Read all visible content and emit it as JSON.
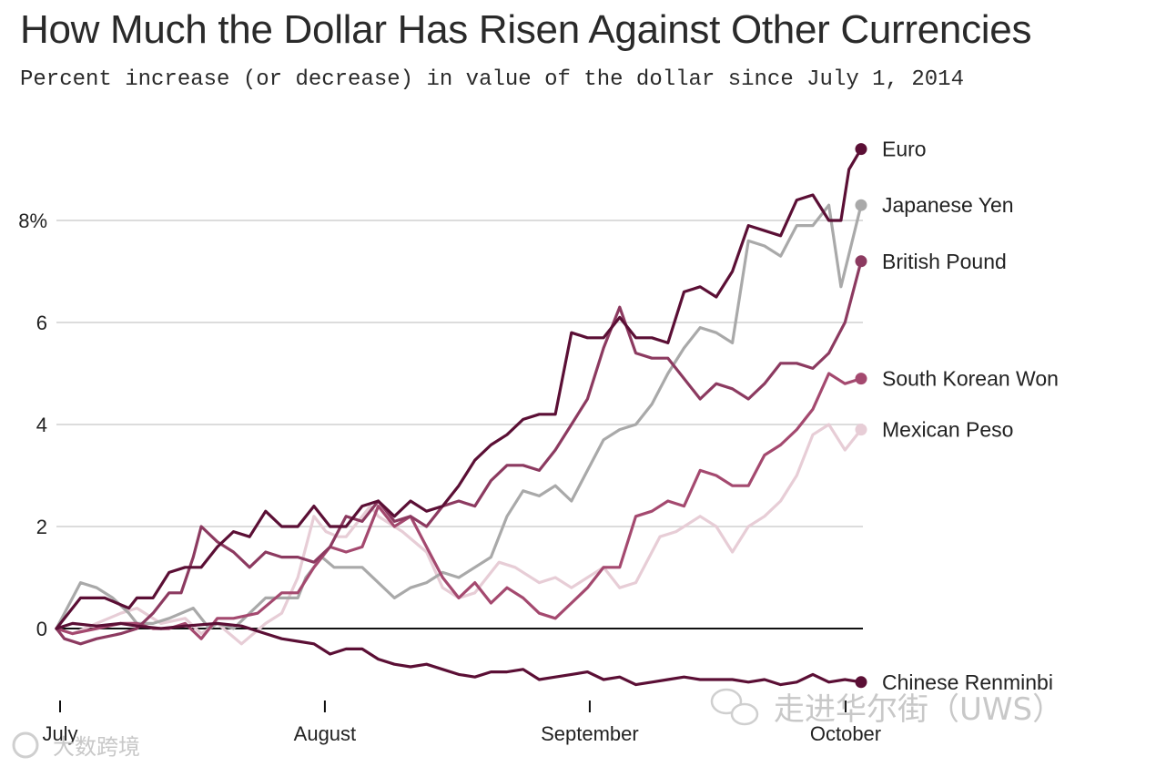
{
  "title": "How Much the Dollar Has Risen Against Other Currencies",
  "subtitle": "Percent increase (or decrease) in value of the dollar since July 1, 2014",
  "watermarks": {
    "left": "大数跨境",
    "right": "走进华尔街（UWS）"
  },
  "chart_data": {
    "type": "line",
    "ylim": [
      -1.3,
      10
    ],
    "xlim": [
      0,
      1
    ],
    "y_ticks": [
      {
        "value": 0,
        "label": "0"
      },
      {
        "value": 2,
        "label": "2"
      },
      {
        "value": 4,
        "label": "4"
      },
      {
        "value": 6,
        "label": "6"
      },
      {
        "value": 8,
        "label": "8%"
      }
    ],
    "x_ticks": [
      {
        "value": 0.0,
        "label": "July"
      },
      {
        "value": 0.3348,
        "label": "August"
      },
      {
        "value": 0.6697,
        "label": "September"
      },
      {
        "value": 0.9932,
        "label": "October"
      }
    ],
    "series": [
      {
        "name": "Mexican Peso",
        "label": "Mexican Peso",
        "color": "#e7cdd6",
        "end_label_value": 3.9,
        "x": [
          0,
          0.02,
          0.05,
          0.08,
          0.1,
          0.13,
          0.16,
          0.18,
          0.2,
          0.23,
          0.26,
          0.28,
          0.3,
          0.32,
          0.335,
          0.35,
          0.36,
          0.39,
          0.4,
          0.43,
          0.46,
          0.48,
          0.5,
          0.52,
          0.55,
          0.57,
          0.6,
          0.62,
          0.64,
          0.66,
          0.68,
          0.7,
          0.72,
          0.75,
          0.77,
          0.8,
          0.82,
          0.84,
          0.86,
          0.88,
          0.9,
          0.92,
          0.94,
          0.96,
          0.98,
          1.0
        ],
        "y": [
          0,
          -0.1,
          0.1,
          0.3,
          0.4,
          0.1,
          0.2,
          -0.1,
          0.1,
          -0.3,
          0.1,
          0.3,
          1.0,
          2.2,
          1.9,
          1.8,
          1.8,
          2.4,
          2.2,
          1.9,
          1.5,
          0.8,
          0.6,
          0.7,
          1.3,
          1.2,
          0.9,
          1.0,
          0.8,
          1.0,
          1.2,
          0.8,
          0.9,
          1.8,
          1.9,
          2.2,
          2.0,
          1.5,
          2.0,
          2.2,
          2.5,
          3.0,
          3.8,
          4.0,
          3.5,
          3.9
        ]
      },
      {
        "name": "Japanese Yen",
        "label": "Japanese Yen",
        "color": "#a9a9a9",
        "end_label_value": 8.3,
        "x": [
          0,
          0.01,
          0.03,
          0.05,
          0.07,
          0.09,
          0.1,
          0.12,
          0.14,
          0.17,
          0.19,
          0.2,
          0.22,
          0.24,
          0.26,
          0.28,
          0.3,
          0.31,
          0.33,
          0.345,
          0.36,
          0.38,
          0.4,
          0.42,
          0.44,
          0.46,
          0.48,
          0.5,
          0.52,
          0.54,
          0.56,
          0.58,
          0.6,
          0.62,
          0.64,
          0.66,
          0.68,
          0.7,
          0.72,
          0.74,
          0.76,
          0.78,
          0.8,
          0.82,
          0.84,
          0.86,
          0.88,
          0.9,
          0.92,
          0.94,
          0.96,
          0.975,
          1.0
        ],
        "y": [
          0,
          0.3,
          0.9,
          0.8,
          0.6,
          0.3,
          0.1,
          0.1,
          0.2,
          0.4,
          0.0,
          0.1,
          0.0,
          0.3,
          0.6,
          0.6,
          0.6,
          1.0,
          1.4,
          1.2,
          1.2,
          1.2,
          0.9,
          0.6,
          0.8,
          0.9,
          1.1,
          1.0,
          1.2,
          1.4,
          2.2,
          2.7,
          2.6,
          2.8,
          2.5,
          3.1,
          3.7,
          3.9,
          4.0,
          4.4,
          5.0,
          5.5,
          5.9,
          5.8,
          5.6,
          7.6,
          7.5,
          7.3,
          7.9,
          7.9,
          8.3,
          6.7,
          8.3
        ]
      },
      {
        "name": "South Korean Won",
        "label": "South Korean Won",
        "color": "#a4496f",
        "end_label_value": 4.9,
        "x": [
          0,
          0.02,
          0.05,
          0.08,
          0.1,
          0.12,
          0.14,
          0.16,
          0.18,
          0.19,
          0.2,
          0.22,
          0.25,
          0.28,
          0.3,
          0.32,
          0.34,
          0.36,
          0.38,
          0.4,
          0.42,
          0.44,
          0.46,
          0.48,
          0.5,
          0.52,
          0.54,
          0.56,
          0.58,
          0.6,
          0.62,
          0.64,
          0.66,
          0.68,
          0.7,
          0.72,
          0.74,
          0.76,
          0.78,
          0.8,
          0.82,
          0.84,
          0.86,
          0.88,
          0.9,
          0.92,
          0.94,
          0.96,
          0.98,
          1.0
        ],
        "y": [
          0,
          -0.1,
          0.0,
          0.1,
          0.1,
          0.0,
          0.0,
          0.1,
          -0.2,
          0.0,
          0.2,
          0.2,
          0.3,
          0.7,
          0.7,
          1.2,
          1.6,
          1.5,
          1.6,
          2.4,
          2.0,
          2.2,
          1.6,
          1.0,
          0.6,
          0.9,
          0.5,
          0.8,
          0.6,
          0.3,
          0.2,
          0.5,
          0.8,
          1.2,
          1.2,
          2.2,
          2.3,
          2.5,
          2.4,
          3.1,
          3.0,
          2.8,
          2.8,
          3.4,
          3.6,
          3.9,
          4.3,
          5.0,
          4.8,
          4.9
        ]
      },
      {
        "name": "British Pound",
        "label": "British Pound",
        "color": "#8c3a60",
        "end_label_value": 7.2,
        "x": [
          0,
          0.01,
          0.03,
          0.05,
          0.08,
          0.1,
          0.12,
          0.14,
          0.155,
          0.17,
          0.18,
          0.2,
          0.22,
          0.24,
          0.26,
          0.28,
          0.3,
          0.32,
          0.34,
          0.36,
          0.38,
          0.4,
          0.42,
          0.44,
          0.46,
          0.48,
          0.5,
          0.52,
          0.54,
          0.56,
          0.58,
          0.6,
          0.62,
          0.64,
          0.66,
          0.68,
          0.7,
          0.72,
          0.74,
          0.76,
          0.78,
          0.8,
          0.82,
          0.84,
          0.86,
          0.88,
          0.9,
          0.92,
          0.94,
          0.96,
          0.98,
          1.0
        ],
        "y": [
          0,
          -0.2,
          -0.3,
          -0.2,
          -0.1,
          0.0,
          0.3,
          0.7,
          0.7,
          1.4,
          2.0,
          1.7,
          1.5,
          1.2,
          1.5,
          1.4,
          1.4,
          1.3,
          1.6,
          2.2,
          2.1,
          2.5,
          2.1,
          2.2,
          2.0,
          2.4,
          2.5,
          2.4,
          2.9,
          3.2,
          3.2,
          3.1,
          3.5,
          4.0,
          4.5,
          5.5,
          6.3,
          5.4,
          5.3,
          5.3,
          4.9,
          4.5,
          4.8,
          4.7,
          4.5,
          4.8,
          5.2,
          5.2,
          5.1,
          5.4,
          6.0,
          7.2
        ]
      },
      {
        "name": "Euro",
        "label": "Euro",
        "color": "#5b0f35",
        "end_label_value": 9.4,
        "x": [
          0,
          0.01,
          0.03,
          0.06,
          0.09,
          0.1,
          0.12,
          0.14,
          0.16,
          0.18,
          0.2,
          0.22,
          0.24,
          0.26,
          0.28,
          0.3,
          0.32,
          0.34,
          0.36,
          0.38,
          0.4,
          0.42,
          0.44,
          0.46,
          0.48,
          0.5,
          0.52,
          0.54,
          0.56,
          0.58,
          0.6,
          0.62,
          0.64,
          0.66,
          0.68,
          0.7,
          0.72,
          0.74,
          0.76,
          0.78,
          0.8,
          0.82,
          0.84,
          0.86,
          0.88,
          0.9,
          0.92,
          0.94,
          0.96,
          0.975,
          0.985,
          1.0
        ],
        "y": [
          0,
          0.2,
          0.6,
          0.6,
          0.4,
          0.6,
          0.6,
          1.1,
          1.2,
          1.2,
          1.6,
          1.9,
          1.8,
          2.3,
          2.0,
          2.0,
          2.4,
          2.0,
          2.0,
          2.4,
          2.5,
          2.2,
          2.5,
          2.3,
          2.4,
          2.8,
          3.3,
          3.6,
          3.8,
          4.1,
          4.2,
          4.2,
          5.8,
          5.7,
          5.7,
          6.1,
          5.7,
          5.7,
          5.6,
          6.6,
          6.7,
          6.5,
          7.0,
          7.9,
          7.8,
          7.7,
          8.4,
          8.5,
          8.0,
          8.0,
          9.0,
          9.4
        ]
      },
      {
        "name": "Chinese Renminbi",
        "label": "Chinese Renminbi",
        "color": "#5b0f35",
        "end_label_value": -1.05,
        "x": [
          0,
          0.02,
          0.05,
          0.08,
          0.1,
          0.13,
          0.16,
          0.2,
          0.23,
          0.26,
          0.28,
          0.3,
          0.32,
          0.34,
          0.36,
          0.38,
          0.4,
          0.42,
          0.44,
          0.46,
          0.48,
          0.5,
          0.52,
          0.54,
          0.56,
          0.58,
          0.6,
          0.62,
          0.64,
          0.66,
          0.68,
          0.7,
          0.72,
          0.74,
          0.76,
          0.78,
          0.8,
          0.82,
          0.84,
          0.86,
          0.88,
          0.9,
          0.92,
          0.94,
          0.96,
          0.98,
          1.0
        ],
        "y": [
          0,
          0.1,
          0.05,
          0.1,
          0.05,
          0.0,
          0.05,
          0.1,
          0.05,
          -0.1,
          -0.2,
          -0.25,
          -0.3,
          -0.5,
          -0.4,
          -0.4,
          -0.6,
          -0.7,
          -0.75,
          -0.7,
          -0.8,
          -0.9,
          -0.95,
          -0.85,
          -0.85,
          -0.8,
          -1.0,
          -0.95,
          -0.9,
          -0.85,
          -1.0,
          -0.95,
          -1.1,
          -1.05,
          -1.0,
          -0.95,
          -1.0,
          -1.0,
          -1.0,
          -1.05,
          -1.0,
          -1.1,
          -1.05,
          -0.9,
          -1.05,
          -1.0,
          -1.05
        ]
      }
    ]
  }
}
